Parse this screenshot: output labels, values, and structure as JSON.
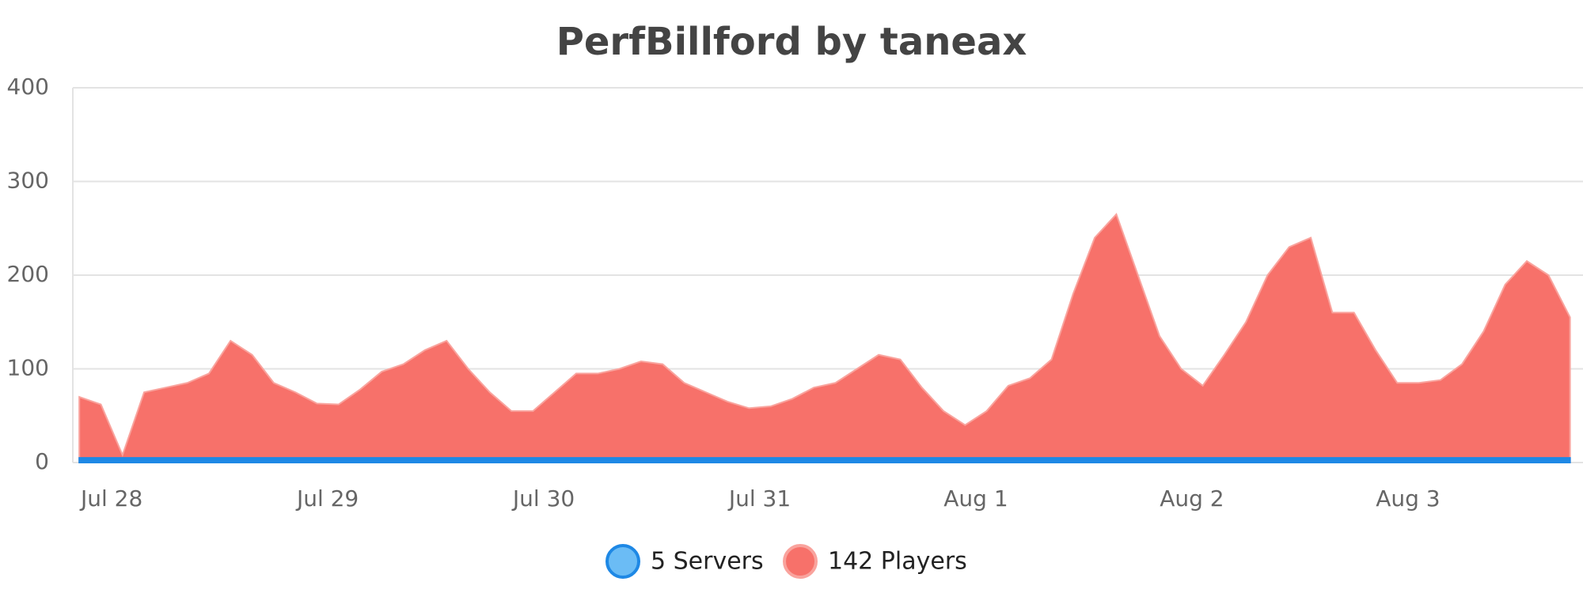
{
  "chart_data": {
    "type": "area",
    "title": "PerfBillford by taneax",
    "x": [
      -0.15,
      -0.05,
      0.05,
      0.15,
      0.25,
      0.35,
      0.45,
      0.55,
      0.65,
      0.75,
      0.85,
      0.95,
      1.05,
      1.15,
      1.25,
      1.35,
      1.45,
      1.55,
      1.65,
      1.75,
      1.85,
      1.95,
      2.05,
      2.15,
      2.25,
      2.35,
      2.45,
      2.55,
      2.65,
      2.75,
      2.85,
      2.95,
      3.05,
      3.15,
      3.25,
      3.35,
      3.45,
      3.55,
      3.65,
      3.75,
      3.85,
      3.95,
      4.05,
      4.15,
      4.25,
      4.35,
      4.45,
      4.55,
      4.65,
      4.75,
      4.85,
      4.95,
      5.05,
      5.15,
      5.25,
      5.35,
      5.45,
      5.55,
      5.65,
      5.75,
      5.85,
      5.95,
      6.05,
      6.15,
      6.25,
      6.35,
      6.45,
      6.55,
      6.65,
      6.75
    ],
    "series": [
      {
        "name": "142 Players",
        "color": "#f7716a",
        "values": [
          70,
          62,
          8,
          75,
          80,
          85,
          95,
          130,
          115,
          85,
          75,
          63,
          62,
          78,
          97,
          105,
          120,
          130,
          100,
          75,
          55,
          55,
          75,
          95,
          95,
          100,
          108,
          105,
          85,
          75,
          65,
          58,
          60,
          68,
          80,
          85,
          100,
          115,
          110,
          80,
          55,
          40,
          55,
          82,
          90,
          110,
          180,
          240,
          265,
          200,
          135,
          100,
          82,
          115,
          150,
          200,
          230,
          240,
          160,
          160,
          120,
          85,
          85,
          88,
          105,
          140,
          190,
          215,
          200,
          155
        ]
      },
      {
        "name": "5 Servers",
        "color": "#1e88e5",
        "values": [
          5,
          5,
          5,
          5,
          5,
          5,
          5,
          5,
          5,
          5,
          5,
          5,
          5,
          5,
          5,
          5,
          5,
          5,
          5,
          5,
          5,
          5,
          5,
          5,
          5,
          5,
          5,
          5,
          5,
          5,
          5,
          5,
          5,
          5,
          5,
          5,
          5,
          5,
          5,
          5,
          5,
          5,
          5,
          5,
          5,
          5,
          5,
          5,
          5,
          5,
          5,
          5,
          5,
          5,
          5,
          5,
          5,
          5,
          5,
          5,
          5,
          5,
          5,
          5,
          5,
          5,
          5,
          5,
          5,
          5
        ]
      }
    ],
    "xlim": [
      -0.18,
      6.81
    ],
    "xticks": [
      {
        "value": 0,
        "label": "Jul 28"
      },
      {
        "value": 1,
        "label": "Jul 29"
      },
      {
        "value": 2,
        "label": "Jul 30"
      },
      {
        "value": 3,
        "label": "Jul 31"
      },
      {
        "value": 4,
        "label": "Aug 1"
      },
      {
        "value": 5,
        "label": "Aug 2"
      },
      {
        "value": 6,
        "label": "Aug 3"
      }
    ],
    "ylim": [
      0,
      400
    ],
    "yticks": [
      0,
      100,
      200,
      300,
      400
    ],
    "grid": true
  }
}
